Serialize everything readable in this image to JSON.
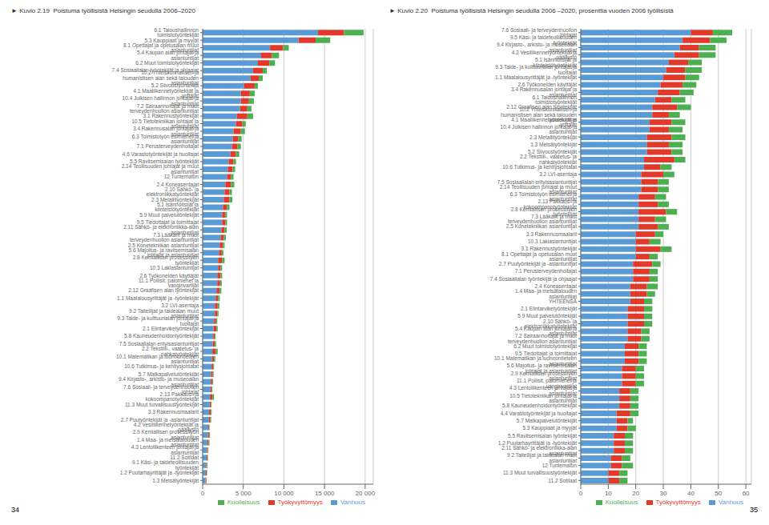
{
  "chart_data": [
    {
      "type": "bar",
      "orientation": "horizontal",
      "stacked": true,
      "grid": true,
      "legend": "lower right",
      "title": "► Kuvio 2.19  Poistuma työllisistä Helsingin seudulla 2006–2020",
      "annotations": [
        "34"
      ],
      "categories": [
        "6.1 Taloushallinnon toimistotyöntekijät",
        "5.3 Kauppiaat ja myyjät",
        "8.1 Opettajat ja opetusalan muut asiantuntijat",
        "5.4 Kaupan alan johtajat ja asiantuntijat",
        "6.2 Muut toimistotyöntekijät",
        "7.4 Sosiaalialan työntekijät ja ohjaajat",
        "10.2 Yhteiskunnallisen ja humanistisen alan sekä talouden asiantuntijat",
        "5.2 Siivoustyöntekijä",
        "4.1 Maaliikennetyöntekijät ja -yrittäjät",
        "10.4 Julkisen hallinnon johtajat ja asiantuntijat",
        "7.2 Sairaanhoitajat ja muut terveydenhuollon asiantuntijat",
        "3.1 Rakennustyöntekijät",
        "10.5 Tietotekniikan johtajat ja asiantuntijat",
        "3.4 Rakennusalan johtajat ja asiantuntijat",
        "6.3 Toimistotyön esimiehet ja asiantuntijat",
        "7.1 Perusterveydenhoitajat",
        "4.6 Varastotyöntekijät ja huoltajat",
        "5.5 Ravitsemisalan työntekijät",
        "2.14 Teollisuuden johtajat ja muut asiantuntijat",
        "12 Tuntematon",
        "2.4 Koneasentajat",
        "2.10 Sähkö- ja elektroniikkatyöntekijät",
        "2.3 Metallityöntekijät",
        "5.1 Isännöitsijät ja kiinteistötyöntekijät",
        "5.9 Muut palvelutöntekijät",
        "9.5 Tiedottajat ja toimittajat",
        "2.11 Sähkö- ja elektroniikka-alan asiantuntijat",
        "7.3 Lääkärit ja muut terveydenhuollon asiantuntijat",
        "2.5 Konetekniikan asiantuntijat",
        "5.6 Majoitus- ja ravitsemisalan johtajat ja asiantuntijat",
        "2.8 Kemiallisen prosessityön työntekijät",
        "10.3 Lakiasiantuntijat",
        "2.6 Työkoneiden käyttäjät",
        "11.1 Poliisit, palomiehet ja vanginvartijat",
        "2.12 Graafisen alan työntekijät",
        "1.1 Maatalousyrittäjät ja -työntekijät",
        "3.2 LVI-asentaja",
        "9.2 Taiteilijat ja taidealan muut asiantuntijat",
        "9.3 Taide- ja kulttuurialan johtajat ja tuottajat",
        "2.1 Elintarviketyöntekijät",
        "5.8 Kauneudenhoidontyöntekijät",
        "7.5 Sosiaalialan erityisasiantuntijat",
        "2.2 Tekstiili-, vaatetus- ja nahkatyöntekijät",
        "10.1 Matematikan ja luonnontieteen asiantuntijat",
        "10.6 Tutkimus- ja kehitysjohtatat",
        "5.7 Matkapalvelutöntekijät",
        "9.4 Kirjasto-, arkisto- ja museoalan asiantuntijat",
        "7.6 Sosiaali- ja terveydenhuollon johtajat",
        "2.13 Pakkaus- ja kokoompanotyöntekijät",
        "11.3 Muut turvallisuustyöntekijät",
        "3.3 Rakennusmaalarit",
        "2.7 Puutyöntekijät ja -asiantuntijat",
        "4.2 Vesiliikennetyöntekijät ja -päällystö",
        "2.9 Kemiallisen prosessityön asiantuntijat",
        "1.4 Maa- ja metsätalouden asiantuntijat",
        "4.3 Lentoliikenteen johtajat ja asiantuntijat",
        "11.2 Sotilaat",
        "9.1 Käsi- ja taideteollisuuden työntekijät",
        "1.2 Puutarhayrittäjät ja -työntekijät",
        "1.3 Metsätyöntekijät"
      ],
      "series": [
        {
          "name": "Vanhuus",
          "color": "#5b9bd5",
          "values": [
            14200,
            11800,
            8300,
            7200,
            6800,
            6200,
            5900,
            5100,
            4700,
            4700,
            4600,
            4200,
            4100,
            3800,
            3700,
            3600,
            3400,
            3200,
            3100,
            3000,
            2800,
            2700,
            2600,
            2500,
            2400,
            2400,
            2300,
            2200,
            2100,
            2000,
            1900,
            1900,
            1800,
            1800,
            1700,
            1600,
            1500,
            1500,
            1400,
            1350,
            1300,
            1250,
            1200,
            1150,
            1100,
            1050,
            1000,
            950,
            900,
            850,
            800,
            750,
            700,
            650,
            600,
            550,
            500,
            450,
            400,
            350
          ]
        },
        {
          "name": "Työkyvyttömyys",
          "color": "#e2392b",
          "values": [
            3200,
            2100,
            1600,
            1300,
            1400,
            1200,
            1000,
            1300,
            1100,
            1000,
            900,
            1300,
            800,
            900,
            700,
            700,
            700,
            600,
            600,
            500,
            700,
            600,
            700,
            500,
            400,
            400,
            400,
            400,
            400,
            350,
            500,
            300,
            400,
            350,
            400,
            300,
            350,
            300,
            250,
            350,
            200,
            250,
            400,
            250,
            200,
            200,
            200,
            150,
            300,
            150,
            200,
            200,
            100,
            150,
            150,
            100,
            100,
            100,
            100,
            100
          ]
        },
        {
          "name": "Kuolleisuus",
          "color": "#4caf50",
          "values": [
            2400,
            1800,
            700,
            900,
            700,
            500,
            500,
            400,
            600,
            600,
            500,
            700,
            400,
            500,
            400,
            400,
            400,
            300,
            300,
            300,
            400,
            300,
            350,
            300,
            200,
            200,
            250,
            250,
            200,
            200,
            300,
            200,
            200,
            200,
            200,
            200,
            200,
            150,
            150,
            150,
            100,
            150,
            250,
            150,
            100,
            100,
            100,
            100,
            200,
            100,
            100,
            100,
            50,
            100,
            100,
            50,
            50,
            50,
            50,
            50
          ]
        }
      ],
      "xlim": [
        0,
        21000
      ],
      "xticks": [
        0,
        {
          "value": 5000,
          "label": "5 000"
        },
        {
          "value": 10000,
          "label": "10 000"
        },
        {
          "value": 15000,
          "label": "15 000"
        },
        {
          "value": 20000,
          "label": "20 000"
        }
      ]
    },
    {
      "type": "bar",
      "orientation": "horizontal",
      "stacked": true,
      "grid": true,
      "legend": "lower right",
      "title": "► Kuvio 2.20  Poistuma työllisistä Helsingin seudulla 2006 –2020, prosenttia vuoden 2006 työllisistä",
      "annotations": [
        "35"
      ],
      "categories": [
        "7.6 Sosiaali- ja terveydenhuollon johtajat",
        "9.5 Käsi- ja taideteollisuuden työntekijät",
        "9.4 Kirjasto-, arkisto- ja museoalan asiantuntijat",
        "4.2 Vesiliikennetyöntekijät ja -päällystö",
        "5.1 Isännöitsijät ja kiinteistötyöntekijät",
        "9.3 Taide- ja kulttuurialan johtajat ja tuottajat",
        "1.1 Maatalousyrittäjät ja -työntekijät",
        "2.6 Työkoneiden käyttäjät",
        "3.4 Rakennusalan johtajat ja asiantuntijat",
        "6.1 Taloushallinnon toimistotyöntekijät",
        "2.12 Graafisen alan työntekijät",
        "10.2 Yhteiskunnallisen ja  humanistisen alan sekä talouden asiantuntijat",
        "4.1 Maaliikennetyöntekijät ja -yrittäjät",
        "10.4 Julkisen hallinnon johtajat ja asiantuntijat",
        "2.3 Metallityöntekijät",
        "1.3 Metsätyöntekijät",
        "5.2 Siivoustyöntekijät",
        "2.2 Tekstiili-, vaatetus- ja nahkatyöntekijät",
        "10.6 Tutkimus- ja kehitysjohtatat",
        "3.2 LVI-asentaja",
        "7.5 Sosiaalialan erityisasiantuntijat",
        "2.14 Teollisuuden johtajat ja muut asiantuntijat",
        "6.3 Toimistotyön esimiehet ja asiantuntijat",
        "2.13 Pakkaus- ja kokoompanotyöntekijät",
        "2.8 Kemiallisen prosessityön työntekijät",
        "7.3 Lääkärit ja muut terveydenhuollon asiantuntijat",
        "2.5 Konetekniikan asiantuntijat",
        "3.3 Rakennusmaalarit",
        "10.3 Lakiasiantuntijat",
        "3.1 Rakennustyöntekijät",
        "8.1 Opettajat ja opetusalan muut asiantuntijat",
        "2.7 Puutyöntekijät ja -asiantuntijat",
        "7.1 Perusterveydenhoitajat",
        "7.4 Sosiaalialan työntekijät ja ohjaajat",
        "2.4 Koneasentajat",
        "1.4 Maa- ja metsätalouden asiantuntijat",
        "YHTEENSÄ",
        "2.1 Elintarviketyöntekijät",
        "5.9 Muut palvelutöntekijät",
        "2.10 Sähkö- ja elektroniikkatyöntekijät",
        "5.4 Kaupan alan johtajat ja asiantuntijat",
        "7.2 Sairaanhoitajat ja muut terveydenhuollon asiantuntijat",
        "6.2 Muut toimistotyöntekijät",
        "9.5 Tiedottajat ja toimittajat",
        "10.1 Matematikan ja luonnontieteen asiantuntijat",
        "5.6 Majoitus- ja ravitsemisalan johtajat ja asiantuntijat",
        "2.9 Kemiallisen prosessityön asiantuntijat",
        "11.1 Poliisit, palomiehet ja vanginvartijat",
        "4.3 Lentoliikenteen johtajat ja asiantuntijat",
        "10.5 Tietotekniikan johtajat ja asiantuntijat",
        "5.8 Kauneudenhoidontyöntekijät",
        "4.4 Varastotyöntekijät ja huoltajat",
        "5.7 Matkapalvelutöntekijät",
        "5.3 Kauppiaat ja myyjät",
        "5.5 Ravitsemisalan työntekijät",
        "1.2 Puutarhayrittäjät ja -työntekijät",
        "2.11 Sähkö- ja elektroniikka-alan asiantuntijat",
        "9.2 Taiteilijat ja taidealan muut asiantuntijat",
        "12 Tuntematon",
        "11.3 Muut turvallisuustyöntekijät",
        "11.2 Sotilaat"
      ],
      "series": [
        {
          "name": "Vanhuus",
          "color": "#5b9bd5",
          "values": [
            40,
            37,
            36,
            34,
            32,
            31,
            30,
            29,
            28,
            27,
            26,
            26,
            25,
            25,
            24,
            24,
            24,
            23,
            23,
            22,
            22,
            22,
            21,
            21,
            21,
            21,
            21,
            20,
            20,
            20,
            20,
            19,
            19,
            19,
            18,
            18,
            18,
            17,
            17,
            17,
            17,
            17,
            16,
            16,
            16,
            15,
            15,
            15,
            14,
            14,
            14,
            13,
            13,
            13,
            12,
            12,
            12,
            11,
            11,
            10,
            10
          ]
        },
        {
          "name": "Työkyvyttömyys",
          "color": "#e2392b",
          "values": [
            8,
            10,
            7,
            9,
            7,
            7,
            8,
            8,
            8,
            6,
            9,
            6,
            8,
            7,
            9,
            8,
            9,
            11,
            6,
            8,
            6,
            6,
            6,
            7,
            10,
            6,
            7,
            7,
            5,
            9,
            5,
            7,
            6,
            6,
            6,
            6,
            5,
            6,
            6,
            6,
            5,
            5,
            5,
            5,
            5,
            5,
            5,
            5,
            4,
            4,
            4,
            5,
            4,
            4,
            4,
            4,
            4,
            4,
            4,
            4,
            4
          ]
        },
        {
          "name": "Kuolleisuus",
          "color": "#4caf50",
          "values": [
            7,
            6,
            6,
            6,
            5,
            6,
            5,
            5,
            5,
            5,
            5,
            4,
            5,
            5,
            5,
            5,
            4,
            4,
            4,
            4,
            4,
            4,
            4,
            4,
            4,
            4,
            4,
            3,
            4,
            4,
            3,
            3,
            3,
            3,
            4,
            3,
            3,
            3,
            3,
            3,
            3,
            3,
            3,
            3,
            3,
            3,
            3,
            3,
            3,
            3,
            3,
            3,
            2,
            3,
            3,
            3,
            3,
            3,
            4,
            3,
            3
          ]
        }
      ],
      "xlim": [
        0,
        62
      ],
      "xticks": [
        0,
        10,
        20,
        30,
        40,
        50,
        60
      ]
    }
  ]
}
